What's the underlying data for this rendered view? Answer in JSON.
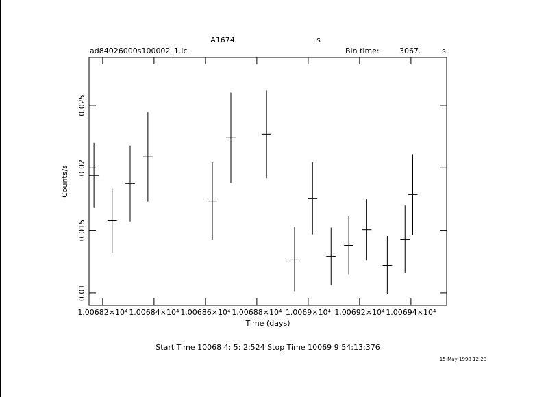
{
  "chart_data": {
    "type": "errorbar",
    "title": "A1674",
    "title_unit": "s",
    "file_name": "ad84026000s100002_1.lc",
    "bin_time_label": "Bin time:",
    "bin_time": "3067.",
    "bin_time_unit": "s",
    "xlabel": "Time (days)",
    "ylabel": "Counts/s",
    "start_stop": "Start Time 10068  4: 5: 2:524    Stop Time 10069  9:54:13:376",
    "date_stamp": "15-May-1998 12:28",
    "color": "#000000",
    "x": [
      10068.166,
      10068.237,
      10068.307,
      10068.376,
      10068.627,
      10068.699,
      10068.838,
      10068.947,
      10069.017,
      10069.089,
      10069.158,
      10069.228,
      10069.308,
      10069.377,
      10069.407
    ],
    "xerr": 0.0185,
    "values": [
      0.0194,
      0.01577,
      0.01874,
      0.02088,
      0.01735,
      0.02241,
      0.02268,
      0.0127,
      0.01757,
      0.01292,
      0.0138,
      0.01505,
      0.01221,
      0.01429,
      0.01786
    ],
    "errors": [
      0.0026,
      0.00257,
      0.00304,
      0.00359,
      0.0031,
      0.0036,
      0.0035,
      0.00257,
      0.0029,
      0.0023,
      0.00235,
      0.00244,
      0.00233,
      0.0027,
      0.00323
    ],
    "xlim": [
      10068.147,
      10069.539
    ],
    "ylim": [
      0.00901,
      0.02883
    ],
    "xticks": [
      {
        "value": 10068.2,
        "label": "1.00682×10⁴"
      },
      {
        "value": 10068.4,
        "label": "1.00684×10⁴"
      },
      {
        "value": 10068.6,
        "label": "1.00686×10⁴"
      },
      {
        "value": 10068.8,
        "label": "1.00688×10⁴"
      },
      {
        "value": 10069.0,
        "label": "1.0069×10⁴"
      },
      {
        "value": 10069.2,
        "label": "1.00692×10⁴"
      },
      {
        "value": 10069.4,
        "label": "1.00694×10⁴"
      }
    ],
    "yticks": [
      0.01,
      0.015,
      0.02,
      0.025
    ]
  }
}
